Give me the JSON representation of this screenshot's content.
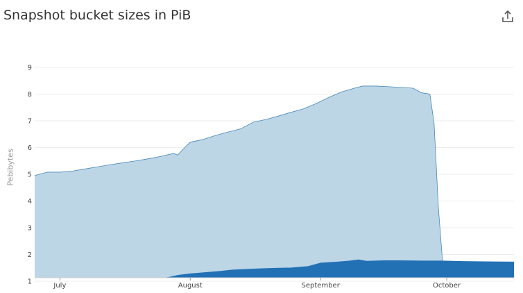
{
  "title": "Snapshot bucket sizes in PiB",
  "export_icon": "share-export-icon",
  "chart_data": {
    "type": "area",
    "title": "Snapshot bucket sizes in PiB",
    "xlabel": "",
    "ylabel": "Pebibytes",
    "ylim": [
      1,
      9
    ],
    "yticks": [
      1,
      2,
      3,
      4,
      5,
      6,
      7,
      8,
      9
    ],
    "x_range": [
      "2022-06-25",
      "2022-10-17"
    ],
    "xticks": [
      {
        "date": "2022-07-01",
        "label": "July"
      },
      {
        "date": "2022-08-01",
        "label": "August"
      },
      {
        "date": "2022-09-01",
        "label": "September"
      },
      {
        "date": "2022-10-01",
        "label": "October"
      }
    ],
    "grid": true,
    "legend": "none",
    "series": [
      {
        "color": "#bcd6e6",
        "line_color": "#4a87b8",
        "points": [
          [
            "2022-06-25",
            4.95
          ],
          [
            "2022-06-28",
            5.08
          ],
          [
            "2022-07-01",
            5.08
          ],
          [
            "2022-07-04",
            5.12
          ],
          [
            "2022-07-07",
            5.2
          ],
          [
            "2022-07-10",
            5.28
          ],
          [
            "2022-07-13",
            5.36
          ],
          [
            "2022-07-16",
            5.43
          ],
          [
            "2022-07-19",
            5.5
          ],
          [
            "2022-07-22",
            5.58
          ],
          [
            "2022-07-25",
            5.67
          ],
          [
            "2022-07-28",
            5.78
          ],
          [
            "2022-07-29",
            5.72
          ],
          [
            "2022-07-31",
            6.05
          ],
          [
            "2022-08-01",
            6.2
          ],
          [
            "2022-08-04",
            6.3
          ],
          [
            "2022-08-07",
            6.45
          ],
          [
            "2022-08-10",
            6.58
          ],
          [
            "2022-08-13",
            6.7
          ],
          [
            "2022-08-16",
            6.95
          ],
          [
            "2022-08-19",
            7.05
          ],
          [
            "2022-08-22",
            7.18
          ],
          [
            "2022-08-25",
            7.32
          ],
          [
            "2022-08-28",
            7.45
          ],
          [
            "2022-08-31",
            7.65
          ],
          [
            "2022-09-03",
            7.88
          ],
          [
            "2022-09-06",
            8.08
          ],
          [
            "2022-09-09",
            8.22
          ],
          [
            "2022-09-11",
            8.3
          ],
          [
            "2022-09-14",
            8.3
          ],
          [
            "2022-09-17",
            8.28
          ],
          [
            "2022-09-20",
            8.25
          ],
          [
            "2022-09-23",
            8.22
          ],
          [
            "2022-09-25",
            8.05
          ],
          [
            "2022-09-27",
            8.0
          ],
          [
            "2022-09-28",
            6.9
          ],
          [
            "2022-09-29",
            3.8
          ],
          [
            "2022-09-30",
            1.75
          ]
        ]
      },
      {
        "color": "#2271b5",
        "line_color": "#2271b5",
        "points": [
          [
            "2022-07-26",
            1.0
          ],
          [
            "2022-07-27",
            1.15
          ],
          [
            "2022-07-29",
            1.22
          ],
          [
            "2022-08-01",
            1.28
          ],
          [
            "2022-08-05",
            1.33
          ],
          [
            "2022-08-08",
            1.37
          ],
          [
            "2022-08-11",
            1.42
          ],
          [
            "2022-08-15",
            1.45
          ],
          [
            "2022-08-18",
            1.47
          ],
          [
            "2022-08-22",
            1.49
          ],
          [
            "2022-08-25",
            1.5
          ],
          [
            "2022-08-29",
            1.55
          ],
          [
            "2022-09-01",
            1.68
          ],
          [
            "2022-09-05",
            1.72
          ],
          [
            "2022-09-08",
            1.76
          ],
          [
            "2022-09-10",
            1.8
          ],
          [
            "2022-09-12",
            1.75
          ],
          [
            "2022-09-16",
            1.77
          ],
          [
            "2022-09-20",
            1.77
          ],
          [
            "2022-09-25",
            1.76
          ],
          [
            "2022-09-30",
            1.76
          ],
          [
            "2022-10-05",
            1.74
          ],
          [
            "2022-10-10",
            1.73
          ],
          [
            "2022-10-17",
            1.72
          ]
        ]
      }
    ]
  }
}
